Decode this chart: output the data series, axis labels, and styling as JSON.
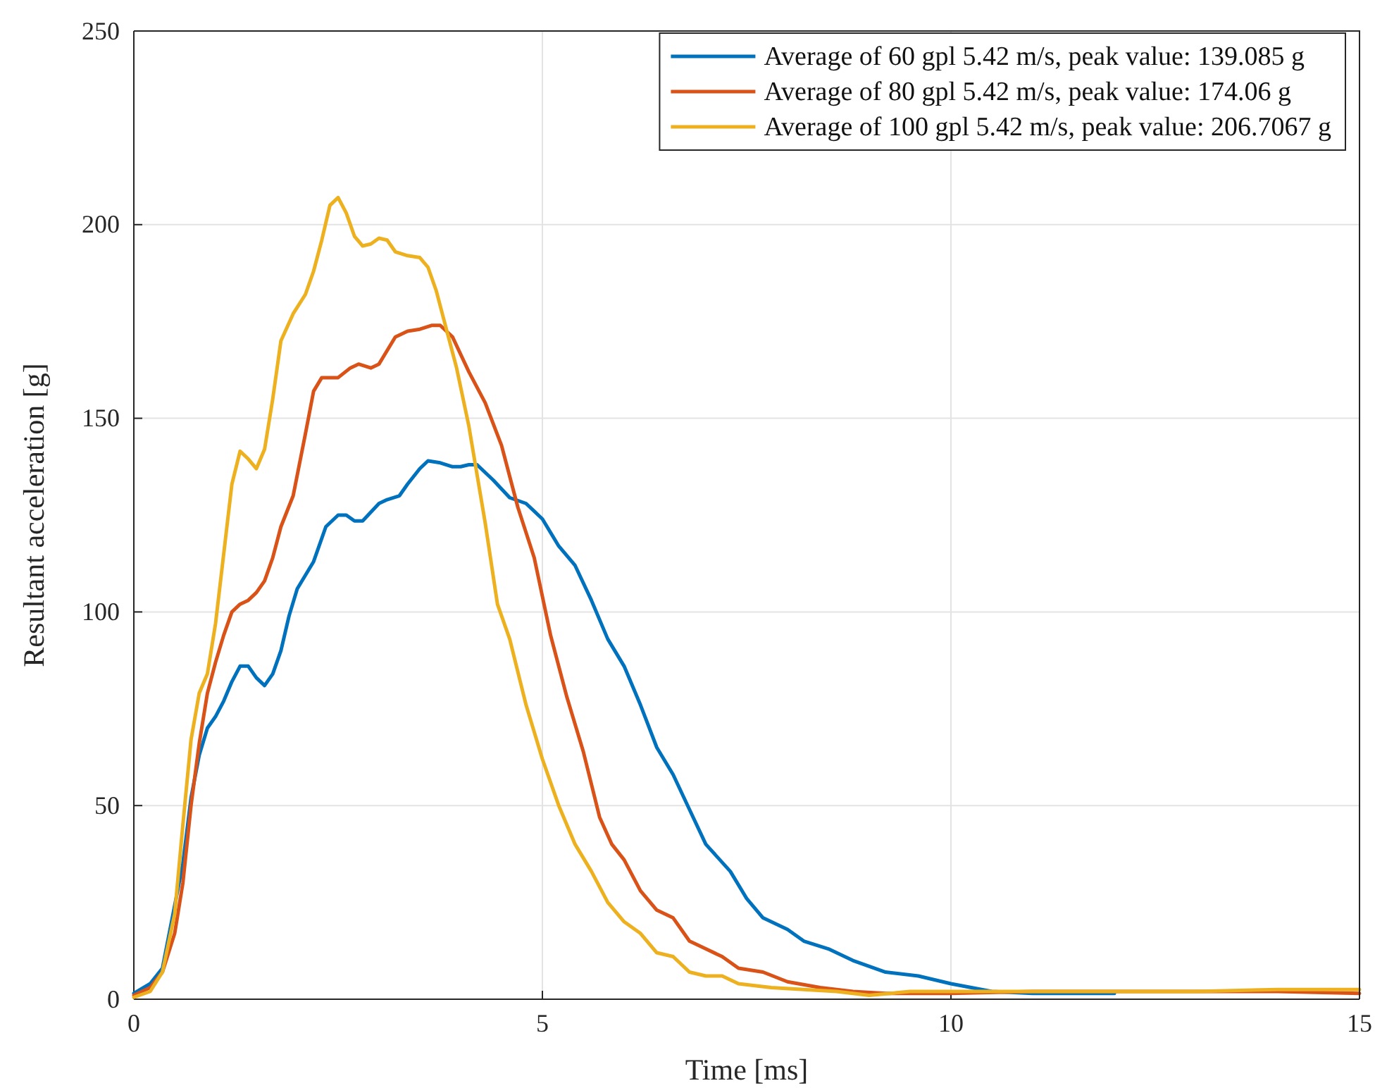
{
  "chart_data": {
    "type": "line",
    "xlabel": "Time [ms]",
    "ylabel": "Resultant acceleration [g]",
    "xlim": [
      0,
      15
    ],
    "ylim": [
      0,
      250
    ],
    "xticks": [
      0,
      5,
      10,
      15
    ],
    "yticks": [
      0,
      50,
      100,
      150,
      200,
      250
    ],
    "grid": true,
    "legend": "top right",
    "marker": "none",
    "line_style": "solid",
    "series": [
      {
        "name": "Average of 60 gpl 5.42 m/s, peak value: 139.085 g",
        "color": "#0072bd",
        "x": [
          0,
          0.2,
          0.35,
          0.5,
          0.6,
          0.7,
          0.8,
          0.9,
          1.0,
          1.1,
          1.2,
          1.3,
          1.4,
          1.5,
          1.6,
          1.7,
          1.8,
          1.9,
          2.0,
          2.2,
          2.35,
          2.5,
          2.6,
          2.7,
          2.8,
          3.0,
          3.1,
          3.25,
          3.35,
          3.5,
          3.6,
          3.75,
          3.9,
          4.0,
          4.1,
          4.2,
          4.4,
          4.6,
          4.8,
          5.0,
          5.2,
          5.4,
          5.6,
          5.8,
          6.0,
          6.2,
          6.4,
          6.6,
          6.8,
          7.0,
          7.3,
          7.5,
          7.7,
          8.0,
          8.2,
          8.5,
          8.8,
          9.2,
          9.6,
          10.0,
          10.5,
          11,
          12
        ],
        "values": [
          1.5,
          4,
          8,
          null,
          35,
          52,
          63,
          70,
          73,
          77,
          82,
          86,
          86,
          83,
          81,
          84,
          90,
          99,
          106,
          113,
          122,
          125,
          125,
          123.5,
          123.5,
          128,
          129,
          130,
          133,
          137,
          139,
          138.5,
          137.5,
          137.5,
          138,
          138,
          134,
          129.5,
          128,
          124,
          117,
          112,
          103,
          93,
          86,
          76,
          65,
          58,
          49,
          40,
          33,
          26,
          21,
          18,
          15,
          13,
          10,
          7,
          6,
          4,
          2,
          1.5,
          1.5
        ]
      },
      {
        "name": "Average of 80 gpl 5.42 m/s, peak value: 174.06 g",
        "color": "#d95319",
        "x": [
          0,
          0.2,
          0.35,
          0.5,
          0.6,
          0.7,
          0.8,
          0.9,
          1.0,
          1.1,
          1.2,
          1.3,
          1.4,
          1.5,
          1.6,
          1.7,
          1.8,
          1.95,
          2.1,
          2.2,
          2.3,
          2.5,
          2.65,
          2.75,
          2.9,
          3.0,
          3.2,
          3.35,
          3.5,
          3.65,
          3.75,
          3.9,
          4.1,
          4.3,
          4.5,
          4.7,
          4.9,
          5.1,
          5.3,
          5.5,
          5.7,
          5.85,
          6.0,
          6.2,
          6.4,
          6.6,
          6.8,
          7.0,
          7.2,
          7.4,
          7.7,
          8.0,
          8.4,
          8.8,
          9.2,
          10,
          11,
          12,
          13,
          14,
          15
        ],
        "values": [
          1,
          3,
          7,
          17,
          30,
          50,
          66,
          79,
          87,
          94,
          100,
          102,
          103,
          105,
          108,
          114,
          122,
          130,
          146,
          157,
          160.5,
          160.5,
          163,
          164,
          163,
          164,
          171,
          172.5,
          173,
          174,
          174,
          171,
          162,
          154,
          143,
          127,
          114,
          94,
          78,
          64,
          47,
          40,
          36,
          28,
          23,
          21,
          15,
          13,
          11,
          8,
          7,
          4.5,
          3,
          2,
          1.5,
          1.5,
          2,
          2,
          2,
          2,
          1.5
        ]
      },
      {
        "name": "Average of 100 gpl 5.42 m/s, peak value: 206.7067 g",
        "color": "#edb120",
        "x": [
          0,
          0.2,
          0.35,
          0.5,
          0.6,
          0.7,
          0.8,
          0.9,
          1.0,
          1.1,
          1.2,
          1.3,
          1.4,
          1.5,
          1.6,
          1.7,
          1.8,
          1.95,
          2.1,
          2.2,
          2.3,
          2.4,
          2.5,
          2.6,
          2.7,
          2.8,
          2.9,
          3.0,
          3.1,
          3.2,
          3.35,
          3.5,
          3.6,
          3.7,
          3.8,
          3.95,
          4.1,
          4.3,
          4.45,
          4.6,
          4.8,
          5.0,
          5.2,
          5.4,
          5.6,
          5.8,
          6.0,
          6.2,
          6.4,
          6.6,
          6.8,
          7.0,
          7.2,
          7.4,
          7.6,
          7.8,
          8.2,
          8.6,
          9,
          9.5,
          10,
          11,
          12,
          13,
          14,
          15
        ],
        "values": [
          0.5,
          2,
          7,
          22,
          45,
          67,
          79,
          84,
          97,
          115,
          133,
          141.5,
          139.5,
          137,
          142,
          155,
          170,
          177,
          182,
          188,
          196,
          205,
          207,
          203,
          197,
          194.5,
          195,
          196.5,
          196,
          193,
          192,
          191.5,
          189,
          183,
          175,
          163,
          148,
          123,
          102,
          93,
          76,
          62,
          50,
          40,
          33,
          25,
          20,
          17,
          12,
          11,
          7,
          6,
          6,
          4,
          3.5,
          3,
          2.5,
          2,
          1,
          2,
          2,
          2,
          2,
          2,
          2.5,
          2.5
        ]
      }
    ]
  }
}
